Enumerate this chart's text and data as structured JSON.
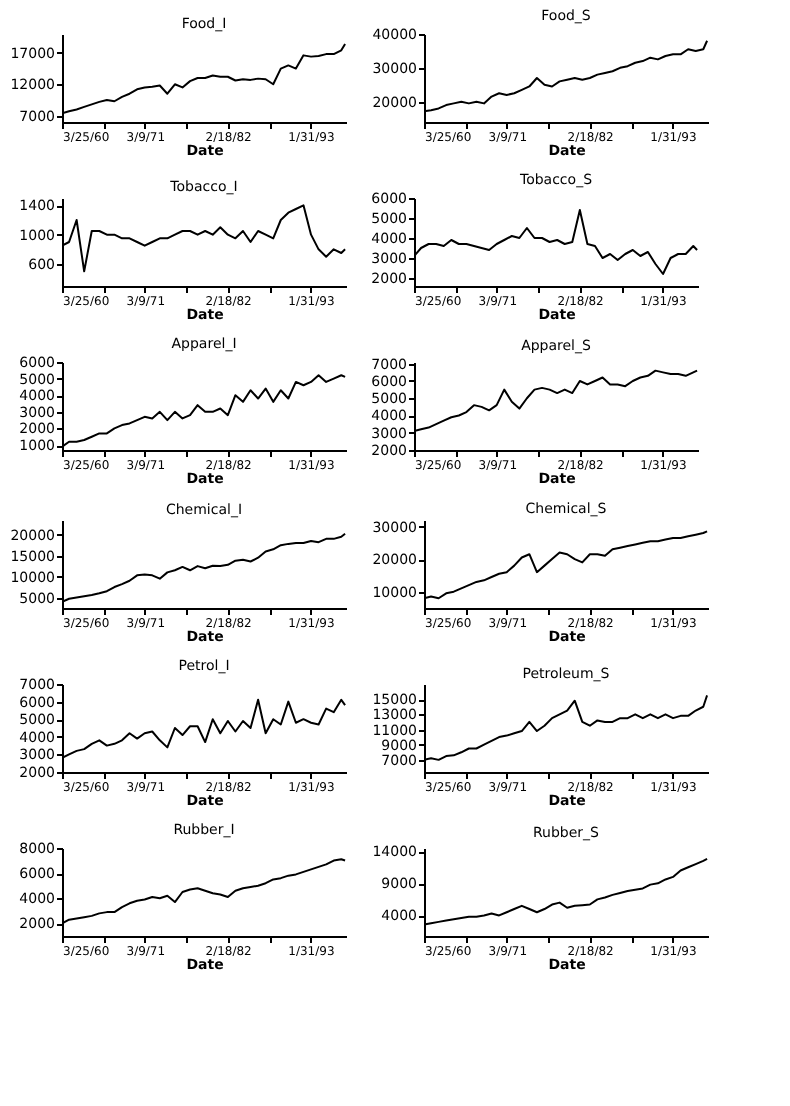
{
  "chart_data": [
    {
      "type": "line",
      "title": "Food_I",
      "xlabel": "Date",
      "color": "#000000",
      "xlim": [
        "1960-03-25",
        "1997-10-15"
      ],
      "ylim": [
        6000,
        20000
      ],
      "yticks": [
        7000,
        12000,
        17000
      ],
      "xticks": [
        {
          "value": "1960-03-25",
          "label": "3/25/60"
        },
        {
          "value": "1965-09-01",
          "label": null
        },
        {
          "value": "1971-03-09",
          "label": "3/9/71"
        },
        {
          "value": "1976-08-29",
          "label": null
        },
        {
          "value": "1982-02-18",
          "label": "2/18/82"
        },
        {
          "value": "1987-08-10",
          "label": null
        },
        {
          "value": "1993-01-31",
          "label": "1/31/93"
        }
      ],
      "x": [
        "1960-04",
        "1961-03",
        "1962-03",
        "1963-03",
        "1964-03",
        "1965-03",
        "1966-03",
        "1967-03",
        "1968-03",
        "1969-03",
        "1970-03",
        "1971-03",
        "1972-03",
        "1973-03",
        "1974-03",
        "1975-03",
        "1976-03",
        "1977-03",
        "1978-03",
        "1979-03",
        "1980-03",
        "1981-03",
        "1982-03",
        "1983-03",
        "1984-03",
        "1985-03",
        "1986-03",
        "1987-03",
        "1988-03",
        "1989-03",
        "1990-03",
        "1991-03",
        "1992-03",
        "1993-03",
        "1994-03",
        "1995-03",
        "1996-03",
        "1997-03",
        "1997-09"
      ],
      "values": [
        7400,
        7700,
        8000,
        8400,
        8800,
        9200,
        9500,
        9300,
        10000,
        10500,
        11200,
        11500,
        11600,
        11800,
        10500,
        12000,
        11500,
        12500,
        13000,
        13000,
        13400,
        13200,
        13200,
        12600,
        12800,
        12700,
        12900,
        12800,
        12000,
        14500,
        15000,
        14500,
        16600,
        16400,
        16500,
        16800,
        16800,
        17400,
        18400
      ]
    },
    {
      "type": "line",
      "title": "Food_S",
      "xlabel": "Date",
      "color": "#000000",
      "xlim": [
        "1960-03-25",
        "1997-10-15"
      ],
      "ylim": [
        14000,
        40000
      ],
      "yticks": [
        20000,
        30000,
        40000
      ],
      "xticks": [
        {
          "value": "1960-03-25",
          "label": "3/25/60"
        },
        {
          "value": "1965-09-01",
          "label": null
        },
        {
          "value": "1971-03-09",
          "label": "3/9/71"
        },
        {
          "value": "1976-08-29",
          "label": null
        },
        {
          "value": "1982-02-18",
          "label": "2/18/82"
        },
        {
          "value": "1987-08-10",
          "label": null
        },
        {
          "value": "1993-01-31",
          "label": "1/31/93"
        }
      ],
      "x": [
        "1960-04",
        "1961-03",
        "1962-03",
        "1963-03",
        "1964-03",
        "1965-03",
        "1966-03",
        "1967-03",
        "1968-03",
        "1969-03",
        "1970-03",
        "1971-03",
        "1972-03",
        "1973-03",
        "1974-03",
        "1975-03",
        "1976-03",
        "1977-03",
        "1978-03",
        "1979-03",
        "1980-03",
        "1981-03",
        "1982-03",
        "1983-03",
        "1984-03",
        "1985-03",
        "1986-03",
        "1987-03",
        "1988-03",
        "1989-03",
        "1990-03",
        "1991-03",
        "1992-03",
        "1993-03",
        "1994-03",
        "1995-03",
        "1996-03",
        "1997-03",
        "1997-09"
      ],
      "values": [
        17200,
        17500,
        18000,
        19000,
        19500,
        20000,
        19500,
        20000,
        19500,
        21500,
        22500,
        22000,
        22500,
        23500,
        24500,
        27000,
        25000,
        24500,
        26000,
        26500,
        27000,
        26500,
        27000,
        28000,
        28500,
        29000,
        30000,
        30500,
        31500,
        32000,
        33000,
        32500,
        33500,
        34000,
        34000,
        35500,
        35000,
        35500,
        38000
      ]
    },
    {
      "type": "line",
      "title": "Tobacco_I",
      "xlabel": "Date",
      "color": "#000000",
      "xlim": [
        "1960-03-25",
        "1997-10-15"
      ],
      "ylim": [
        300,
        1500
      ],
      "yticks": [
        600,
        1000,
        1400
      ],
      "xticks": [
        {
          "value": "1960-03-25",
          "label": "3/25/60"
        },
        {
          "value": "1965-09-01",
          "label": null
        },
        {
          "value": "1971-03-09",
          "label": "3/9/71"
        },
        {
          "value": "1976-08-29",
          "label": null
        },
        {
          "value": "1982-02-18",
          "label": "2/18/82"
        },
        {
          "value": "1987-08-10",
          "label": null
        },
        {
          "value": "1993-01-31",
          "label": "1/31/93"
        }
      ],
      "x": [
        "1960-04",
        "1961-03",
        "1962-03",
        "1963-03",
        "1964-03",
        "1965-03",
        "1966-03",
        "1967-03",
        "1968-03",
        "1969-03",
        "1970-03",
        "1971-03",
        "1972-03",
        "1973-03",
        "1974-03",
        "1975-03",
        "1976-03",
        "1977-03",
        "1978-03",
        "1979-03",
        "1980-03",
        "1981-03",
        "1982-03",
        "1983-03",
        "1984-03",
        "1985-03",
        "1986-03",
        "1987-03",
        "1988-03",
        "1989-03",
        "1990-03",
        "1991-03",
        "1992-03",
        "1993-03",
        "1994-03",
        "1995-03",
        "1996-03",
        "1997-03",
        "1997-09"
      ],
      "values": [
        850,
        900,
        1200,
        500,
        1050,
        1050,
        1000,
        1000,
        950,
        950,
        900,
        850,
        900,
        950,
        950,
        1000,
        1050,
        1050,
        1000,
        1050,
        1000,
        1100,
        1000,
        950,
        1050,
        900,
        1050,
        1000,
        950,
        1200,
        1300,
        1350,
        1400,
        1000,
        800,
        700,
        800,
        750,
        800
      ]
    },
    {
      "type": "line",
      "title": "Tobacco_S",
      "xlabel": "Date",
      "color": "#000000",
      "xlim": [
        "1960-03-25",
        "1997-10-15"
      ],
      "ylim": [
        1600,
        6000
      ],
      "yticks": [
        2000,
        3000,
        4000,
        5000,
        6000
      ],
      "xticks": [
        {
          "value": "1960-03-25",
          "label": "3/25/60"
        },
        {
          "value": "1965-09-01",
          "label": null
        },
        {
          "value": "1971-03-09",
          "label": "3/9/71"
        },
        {
          "value": "1976-08-29",
          "label": null
        },
        {
          "value": "1982-02-18",
          "label": "2/18/82"
        },
        {
          "value": "1987-08-10",
          "label": null
        },
        {
          "value": "1993-01-31",
          "label": "1/31/93"
        }
      ],
      "x": [
        "1960-04",
        "1961-03",
        "1962-03",
        "1963-03",
        "1964-03",
        "1965-03",
        "1966-03",
        "1967-03",
        "1968-03",
        "1969-03",
        "1970-03",
        "1971-03",
        "1972-03",
        "1973-03",
        "1974-03",
        "1975-03",
        "1976-03",
        "1977-03",
        "1978-03",
        "1979-03",
        "1980-03",
        "1981-03",
        "1982-03",
        "1983-03",
        "1984-03",
        "1985-03",
        "1986-03",
        "1987-03",
        "1988-03",
        "1989-03",
        "1990-03",
        "1991-03",
        "1992-03",
        "1993-03",
        "1994-03",
        "1995-03",
        "1996-03",
        "1997-03",
        "1997-09"
      ],
      "values": [
        3100,
        3500,
        3700,
        3700,
        3600,
        3900,
        3700,
        3700,
        3600,
        3500,
        3400,
        3700,
        3900,
        4100,
        4000,
        4500,
        4000,
        4000,
        3800,
        3900,
        3700,
        3800,
        5400,
        3700,
        3600,
        3000,
        3200,
        2900,
        3200,
        3400,
        3100,
        3300,
        2700,
        2200,
        3000,
        3200,
        3200,
        3600,
        3400
      ]
    },
    {
      "type": "line",
      "title": "Apparel_I",
      "xlabel": "Date",
      "color": "#000000",
      "xlim": [
        "1960-03-25",
        "1997-10-15"
      ],
      "ylim": [
        700,
        6000
      ],
      "yticks": [
        1000,
        2000,
        3000,
        4000,
        5000,
        6000
      ],
      "xticks": [
        {
          "value": "1960-03-25",
          "label": "3/25/60"
        },
        {
          "value": "1965-09-01",
          "label": null
        },
        {
          "value": "1971-03-09",
          "label": "3/9/71"
        },
        {
          "value": "1976-08-29",
          "label": null
        },
        {
          "value": "1982-02-18",
          "label": "2/18/82"
        },
        {
          "value": "1987-08-10",
          "label": null
        },
        {
          "value": "1993-01-31",
          "label": "1/31/93"
        }
      ],
      "x": [
        "1960-04",
        "1961-03",
        "1962-03",
        "1963-03",
        "1964-03",
        "1965-03",
        "1966-03",
        "1967-03",
        "1968-03",
        "1969-03",
        "1970-03",
        "1971-03",
        "1972-03",
        "1973-03",
        "1974-03",
        "1975-03",
        "1976-03",
        "1977-03",
        "1978-03",
        "1979-03",
        "1980-03",
        "1981-03",
        "1982-03",
        "1983-03",
        "1984-03",
        "1985-03",
        "1986-03",
        "1987-03",
        "1988-03",
        "1989-03",
        "1990-03",
        "1991-03",
        "1992-03",
        "1993-03",
        "1994-03",
        "1995-03",
        "1996-03",
        "1997-03",
        "1997-09"
      ],
      "values": [
        900,
        1200,
        1200,
        1300,
        1500,
        1700,
        1700,
        2000,
        2200,
        2300,
        2500,
        2700,
        2600,
        3000,
        2500,
        3000,
        2600,
        2800,
        3400,
        3000,
        3000,
        3200,
        2800,
        4000,
        3600,
        4300,
        3800,
        4400,
        3600,
        4300,
        3800,
        4800,
        4600,
        4800,
        5200,
        4800,
        5000,
        5200,
        5100
      ]
    },
    {
      "type": "line",
      "title": "Apparel_S",
      "xlabel": "Date",
      "color": "#000000",
      "xlim": [
        "1960-03-25",
        "1997-10-15"
      ],
      "ylim": [
        2000,
        7100
      ],
      "yticks": [
        2000,
        3000,
        4000,
        5000,
        6000,
        7000
      ],
      "xticks": [
        {
          "value": "1960-03-25",
          "label": "3/25/60"
        },
        {
          "value": "1965-09-01",
          "label": null
        },
        {
          "value": "1971-03-09",
          "label": "3/9/71"
        },
        {
          "value": "1976-08-29",
          "label": null
        },
        {
          "value": "1982-02-18",
          "label": "2/18/82"
        },
        {
          "value": "1987-08-10",
          "label": null
        },
        {
          "value": "1993-01-31",
          "label": "1/31/93"
        }
      ],
      "x": [
        "1960-04",
        "1961-03",
        "1962-03",
        "1963-03",
        "1964-03",
        "1965-03",
        "1966-03",
        "1967-03",
        "1968-03",
        "1969-03",
        "1970-03",
        "1971-03",
        "1972-03",
        "1973-03",
        "1974-03",
        "1975-03",
        "1976-03",
        "1977-03",
        "1978-03",
        "1979-03",
        "1980-03",
        "1981-03",
        "1982-03",
        "1983-03",
        "1984-03",
        "1985-03",
        "1986-03",
        "1987-03",
        "1988-03",
        "1989-03",
        "1990-03",
        "1991-03",
        "1992-03",
        "1993-03",
        "1994-03",
        "1995-03",
        "1996-03",
        "1997-03",
        "1997-09"
      ],
      "values": [
        3100,
        3200,
        3300,
        3500,
        3700,
        3900,
        4000,
        4200,
        4600,
        4500,
        4300,
        4600,
        5500,
        4800,
        4400,
        5000,
        5500,
        5600,
        5500,
        5300,
        5500,
        5300,
        6000,
        5800,
        6000,
        6200,
        5800,
        5800,
        5700,
        6000,
        6200,
        6300,
        6600,
        6500,
        6400,
        6400,
        6300,
        6500,
        6600
      ]
    },
    {
      "type": "line",
      "title": "Chemical_I",
      "xlabel": "Date",
      "color": "#000000",
      "xlim": [
        "1960-03-25",
        "1997-10-15"
      ],
      "ylim": [
        2500,
        23500
      ],
      "yticks": [
        5000,
        10000,
        15000,
        20000
      ],
      "xticks": [
        {
          "value": "1960-03-25",
          "label": "3/25/60"
        },
        {
          "value": "1965-09-01",
          "label": null
        },
        {
          "value": "1971-03-09",
          "label": "3/9/71"
        },
        {
          "value": "1976-08-29",
          "label": null
        },
        {
          "value": "1982-02-18",
          "label": "2/18/82"
        },
        {
          "value": "1987-08-10",
          "label": null
        },
        {
          "value": "1993-01-31",
          "label": "1/31/93"
        }
      ],
      "x": [
        "1960-04",
        "1961-03",
        "1962-03",
        "1963-03",
        "1964-03",
        "1965-03",
        "1966-03",
        "1967-03",
        "1968-03",
        "1969-03",
        "1970-03",
        "1971-03",
        "1972-03",
        "1973-03",
        "1974-03",
        "1975-03",
        "1976-03",
        "1977-03",
        "1978-03",
        "1979-03",
        "1980-03",
        "1981-03",
        "1982-03",
        "1983-03",
        "1984-03",
        "1985-03",
        "1986-03",
        "1987-03",
        "1988-03",
        "1989-03",
        "1990-03",
        "1991-03",
        "1992-03",
        "1993-03",
        "1994-03",
        "1995-03",
        "1996-03",
        "1997-03",
        "1997-09"
      ],
      "values": [
        4000,
        4700,
        5000,
        5300,
        5600,
        6000,
        6500,
        7500,
        8200,
        9000,
        10300,
        10500,
        10300,
        9500,
        11000,
        11500,
        12300,
        11500,
        12500,
        12000,
        12600,
        12500,
        12800,
        13800,
        14000,
        13600,
        14500,
        16000,
        16500,
        17500,
        17800,
        18000,
        18000,
        18500,
        18200,
        19000,
        19000,
        19500,
        20200
      ]
    },
    {
      "type": "line",
      "title": "Chemical_S",
      "xlabel": "Date",
      "color": "#000000",
      "xlim": [
        "1960-03-25",
        "1997-10-15"
      ],
      "ylim": [
        5000,
        32000
      ],
      "yticks": [
        10000,
        20000,
        30000
      ],
      "xticks": [
        {
          "value": "1960-03-25",
          "label": "3/25/60"
        },
        {
          "value": "1965-09-01",
          "label": null
        },
        {
          "value": "1971-03-09",
          "label": "3/9/71"
        },
        {
          "value": "1976-08-29",
          "label": null
        },
        {
          "value": "1982-02-18",
          "label": "2/18/82"
        },
        {
          "value": "1987-08-10",
          "label": null
        },
        {
          "value": "1993-01-31",
          "label": "1/31/93"
        }
      ],
      "x": [
        "1960-04",
        "1961-03",
        "1962-03",
        "1963-03",
        "1964-03",
        "1965-03",
        "1966-03",
        "1967-03",
        "1968-03",
        "1969-03",
        "1970-03",
        "1971-03",
        "1972-03",
        "1973-03",
        "1974-03",
        "1975-03",
        "1976-03",
        "1977-03",
        "1978-03",
        "1979-03",
        "1980-03",
        "1981-03",
        "1982-03",
        "1983-03",
        "1984-03",
        "1985-03",
        "1986-03",
        "1987-03",
        "1988-03",
        "1989-03",
        "1990-03",
        "1991-03",
        "1992-03",
        "1993-03",
        "1994-03",
        "1995-03",
        "1996-03",
        "1997-03",
        "1997-09"
      ],
      "values": [
        8000,
        8500,
        8000,
        9500,
        10000,
        11000,
        12000,
        13000,
        13500,
        14500,
        15500,
        16000,
        18000,
        20500,
        21500,
        16000,
        18000,
        20000,
        22000,
        21500,
        20000,
        19000,
        21500,
        21500,
        21000,
        23000,
        23500,
        24000,
        24500,
        25000,
        25500,
        25500,
        26000,
        26500,
        26500,
        27000,
        27500,
        28000,
        28500
      ]
    },
    {
      "type": "line",
      "title": "Petrol_I",
      "xlabel": "Date",
      "color": "#000000",
      "xlim": [
        "1960-03-25",
        "1997-10-15"
      ],
      "ylim": [
        2000,
        7000
      ],
      "yticks": [
        2000,
        3000,
        4000,
        5000,
        6000,
        7000
      ],
      "xticks": [
        {
          "value": "1960-03-25",
          "label": "3/25/60"
        },
        {
          "value": "1965-09-01",
          "label": null
        },
        {
          "value": "1971-03-09",
          "label": "3/9/71"
        },
        {
          "value": "1976-08-29",
          "label": null
        },
        {
          "value": "1982-02-18",
          "label": "2/18/82"
        },
        {
          "value": "1987-08-10",
          "label": null
        },
        {
          "value": "1993-01-31",
          "label": "1/31/93"
        }
      ],
      "x": [
        "1960-04",
        "1961-03",
        "1962-03",
        "1963-03",
        "1964-03",
        "1965-03",
        "1966-03",
        "1967-03",
        "1968-03",
        "1969-03",
        "1970-03",
        "1971-03",
        "1972-03",
        "1973-03",
        "1974-03",
        "1975-03",
        "1976-03",
        "1977-03",
        "1978-03",
        "1979-03",
        "1980-03",
        "1981-03",
        "1982-03",
        "1983-03",
        "1984-03",
        "1985-03",
        "1986-03",
        "1987-03",
        "1988-03",
        "1989-03",
        "1990-03",
        "1991-03",
        "1992-03",
        "1993-03",
        "1994-03",
        "1995-03",
        "1996-03",
        "1997-03",
        "1997-09"
      ],
      "values": [
        2800,
        3000,
        3200,
        3300,
        3600,
        3800,
        3500,
        3600,
        3800,
        4200,
        3900,
        4200,
        4300,
        3800,
        3400,
        4500,
        4100,
        4600,
        4600,
        3700,
        5000,
        4200,
        4900,
        4300,
        4900,
        4500,
        6100,
        4200,
        5000,
        4700,
        6000,
        4800,
        5000,
        4800,
        4700,
        5600,
        5400,
        6100,
        5800
      ]
    },
    {
      "type": "line",
      "title": "Petroleum_S",
      "xlabel": "Date",
      "color": "#000000",
      "xlim": [
        "1960-03-25",
        "1997-10-15"
      ],
      "ylim": [
        5400,
        17000
      ],
      "yticks": [
        7000,
        9000,
        11000,
        13000,
        15000
      ],
      "xticks": [
        {
          "value": "1960-03-25",
          "label": "3/25/60"
        },
        {
          "value": "1965-09-01",
          "label": null
        },
        {
          "value": "1971-03-09",
          "label": "3/9/71"
        },
        {
          "value": "1976-08-29",
          "label": null
        },
        {
          "value": "1982-02-18",
          "label": "2/18/82"
        },
        {
          "value": "1987-08-10",
          "label": null
        },
        {
          "value": "1993-01-31",
          "label": "1/31/93"
        }
      ],
      "x": [
        "1960-04",
        "1961-03",
        "1962-03",
        "1963-03",
        "1964-03",
        "1965-03",
        "1966-03",
        "1967-03",
        "1968-03",
        "1969-03",
        "1970-03",
        "1971-03",
        "1972-03",
        "1973-03",
        "1974-03",
        "1975-03",
        "1976-03",
        "1977-03",
        "1978-03",
        "1979-03",
        "1980-03",
        "1981-03",
        "1982-03",
        "1983-03",
        "1984-03",
        "1985-03",
        "1986-03",
        "1987-03",
        "1988-03",
        "1989-03",
        "1990-03",
        "1991-03",
        "1992-03",
        "1993-03",
        "1994-03",
        "1995-03",
        "1996-03",
        "1997-03",
        "1997-09"
      ],
      "values": [
        7000,
        7200,
        7000,
        7500,
        7600,
        8000,
        8500,
        8500,
        9000,
        9500,
        10000,
        10200,
        10500,
        10800,
        12000,
        10800,
        11500,
        12500,
        13000,
        13500,
        14800,
        12000,
        11500,
        12200,
        12000,
        12000,
        12500,
        12500,
        13000,
        12500,
        13000,
        12500,
        13000,
        12500,
        12800,
        12800,
        13500,
        14000,
        15500
      ]
    },
    {
      "type": "line",
      "title": "Rubber_I",
      "xlabel": "Date",
      "color": "#000000",
      "xlim": [
        "1960-03-25",
        "1997-10-15"
      ],
      "ylim": [
        1000,
        8000
      ],
      "yticks": [
        2000,
        4000,
        6000,
        8000
      ],
      "xticks": [
        {
          "value": "1960-03-25",
          "label": "3/25/60"
        },
        {
          "value": "1965-09-01",
          "label": null
        },
        {
          "value": "1971-03-09",
          "label": "3/9/71"
        },
        {
          "value": "1976-08-29",
          "label": null
        },
        {
          "value": "1982-02-18",
          "label": "2/18/82"
        },
        {
          "value": "1987-08-10",
          "label": null
        },
        {
          "value": "1993-01-31",
          "label": "1/31/93"
        }
      ],
      "x": [
        "1960-04",
        "1961-03",
        "1962-03",
        "1963-03",
        "1964-03",
        "1965-03",
        "1966-03",
        "1967-03",
        "1968-03",
        "1969-03",
        "1970-03",
        "1971-03",
        "1972-03",
        "1973-03",
        "1974-03",
        "1975-03",
        "1976-03",
        "1977-03",
        "1978-03",
        "1979-03",
        "1980-03",
        "1981-03",
        "1982-03",
        "1983-03",
        "1984-03",
        "1985-03",
        "1986-03",
        "1987-03",
        "1988-03",
        "1989-03",
        "1990-03",
        "1991-03",
        "1992-03",
        "1993-03",
        "1994-03",
        "1995-03",
        "1996-03",
        "1997-03",
        "1997-09"
      ],
      "values": [
        2000,
        2300,
        2400,
        2500,
        2600,
        2800,
        2900,
        2900,
        3300,
        3600,
        3800,
        3900,
        4100,
        4000,
        4200,
        3700,
        4500,
        4700,
        4800,
        4600,
        4400,
        4300,
        4100,
        4600,
        4800,
        4900,
        5000,
        5200,
        5500,
        5600,
        5800,
        5900,
        6100,
        6300,
        6500,
        6700,
        7000,
        7100,
        7000
      ]
    },
    {
      "type": "line",
      "title": "Rubber_S",
      "xlabel": "Date",
      "color": "#000000",
      "xlim": [
        "1960-03-25",
        "1997-10-15"
      ],
      "ylim": [
        800,
        14500
      ],
      "yticks": [
        4000,
        9000,
        14000
      ],
      "xticks": [
        {
          "value": "1960-03-25",
          "label": "3/25/60"
        },
        {
          "value": "1965-09-01",
          "label": null
        },
        {
          "value": "1971-03-09",
          "label": "3/9/71"
        },
        {
          "value": "1976-08-29",
          "label": null
        },
        {
          "value": "1982-02-18",
          "label": "2/18/82"
        },
        {
          "value": "1987-08-10",
          "label": null
        },
        {
          "value": "1993-01-31",
          "label": "1/31/93"
        }
      ],
      "x": [
        "1960-04",
        "1961-03",
        "1962-03",
        "1963-03",
        "1964-03",
        "1965-03",
        "1966-03",
        "1967-03",
        "1968-03",
        "1969-03",
        "1970-03",
        "1971-03",
        "1972-03",
        "1973-03",
        "1974-03",
        "1975-03",
        "1976-03",
        "1977-03",
        "1978-03",
        "1979-03",
        "1980-03",
        "1981-03",
        "1982-03",
        "1983-03",
        "1984-03",
        "1985-03",
        "1986-03",
        "1987-03",
        "1988-03",
        "1989-03",
        "1990-03",
        "1991-03",
        "1992-03",
        "1993-03",
        "1994-03",
        "1995-03",
        "1996-03",
        "1997-03",
        "1997-09"
      ],
      "values": [
        2600,
        2800,
        3000,
        3200,
        3400,
        3600,
        3800,
        3800,
        4000,
        4300,
        4000,
        4500,
        5000,
        5500,
        5000,
        4500,
        5000,
        5700,
        6000,
        5200,
        5500,
        5600,
        5700,
        6500,
        6800,
        7200,
        7500,
        7800,
        8000,
        8200,
        8800,
        9000,
        9600,
        10000,
        11000,
        11500,
        12000,
        12500,
        12800
      ]
    }
  ]
}
